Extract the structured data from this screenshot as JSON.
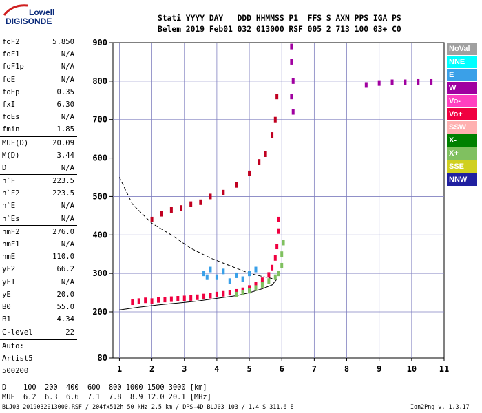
{
  "logo": {
    "line1": "Lowell",
    "line2": "DIGISONDE"
  },
  "header": {
    "line1": "Stati YYYY DAY   DDD HHMMSS P1  FFS S AXN PPS IGA PS",
    "line2": "Belem 2019 Feb01 032 013000 RSF 005 2 713 100 03+ C0"
  },
  "params": {
    "group1": [
      {
        "label": "foF2",
        "value": "5.850"
      },
      {
        "label": "foF1",
        "value": "N/A"
      },
      {
        "label": "foF1p",
        "value": "N/A"
      },
      {
        "label": "foE",
        "value": "N/A"
      },
      {
        "label": "foEp",
        "value": "0.35"
      },
      {
        "label": "fxI",
        "value": "6.30"
      },
      {
        "label": "foEs",
        "value": "N/A"
      },
      {
        "label": "fmin",
        "value": "1.85"
      }
    ],
    "group2": [
      {
        "label": "MUF(D)",
        "value": "20.09"
      },
      {
        "label": "M(D)",
        "value": "3.44"
      },
      {
        "label": "D",
        "value": "N/A"
      }
    ],
    "group3": [
      {
        "label": "h`F",
        "value": "223.5"
      },
      {
        "label": "h`F2",
        "value": "223.5"
      },
      {
        "label": "h`E",
        "value": "N/A"
      },
      {
        "label": "h`Es",
        "value": "N/A"
      }
    ],
    "group4": [
      {
        "label": "hmF2",
        "value": "276.0"
      },
      {
        "label": "hmF1",
        "value": "N/A"
      },
      {
        "label": "hmE",
        "value": "110.0"
      },
      {
        "label": "yF2",
        "value": "66.2"
      },
      {
        "label": "yF1",
        "value": "N/A"
      },
      {
        "label": "yE",
        "value": "20.0"
      },
      {
        "label": "B0",
        "value": "55.0"
      },
      {
        "label": "B1",
        "value": "4.34"
      }
    ],
    "group5": [
      {
        "label": "C-level",
        "value": "22"
      }
    ],
    "auto": {
      "line1": "Auto:",
      "line2": "Artist5",
      "line3": "500200"
    }
  },
  "legend": [
    {
      "label": "NoVal",
      "bg": "#a0a0a0",
      "fg": "#ffffff"
    },
    {
      "label": "NNE",
      "bg": "#00ffff",
      "fg": "#ffffff"
    },
    {
      "label": "E",
      "bg": "#3aa0e8",
      "fg": "#ffffff"
    },
    {
      "label": "W",
      "bg": "#a000a0",
      "fg": "#ffffff"
    },
    {
      "label": "Vo-",
      "bg": "#ff40c0",
      "fg": "#ffffff"
    },
    {
      "label": "Vo+",
      "bg": "#f00040",
      "fg": "#ffffff"
    },
    {
      "label": "SSW",
      "bg": "#ffb0b0",
      "fg": "#ffffff"
    },
    {
      "label": "X-",
      "bg": "#008000",
      "fg": "#ffffff"
    },
    {
      "label": "X+",
      "bg": "#80c060",
      "fg": "#ffffff"
    },
    {
      "label": "SSE",
      "bg": "#d0d020",
      "fg": "#ffffff"
    },
    {
      "label": "NNW",
      "bg": "#2020a0",
      "fg": "#ffffff"
    }
  ],
  "footer": {
    "d_row": "D    100  200  400  600  800 1000 1500 3000 [km]",
    "muf_row": "MUF  6.2  6.3  6.6  7.1  7.8  8.9 12.0 20.1 [MHz]",
    "file": "BLJ03_2019032013000.RSF / 204fx512h 50 kHz 2.5 km / DPS-4D BLJ03 103 / 1.4 S 311.6 E",
    "version": "Ion2Png v. 1.3.17"
  },
  "chart_data": {
    "type": "scatter",
    "title": "",
    "xlabel": "",
    "ylabel": "",
    "xlim": [
      0.8,
      11.0
    ],
    "ylim": [
      80,
      900
    ],
    "xticks": [
      1,
      2,
      3,
      4,
      5,
      6,
      7,
      8,
      9,
      10,
      11
    ],
    "yticks": [
      80,
      200,
      300,
      400,
      500,
      600,
      700,
      800,
      900
    ],
    "grid": true,
    "series": [
      {
        "color": "#f00040",
        "points": [
          [
            1.4,
            225
          ],
          [
            1.6,
            228
          ],
          [
            1.8,
            230
          ],
          [
            2.0,
            228
          ],
          [
            2.2,
            231
          ],
          [
            2.4,
            232
          ],
          [
            2.6,
            233
          ],
          [
            2.8,
            234
          ],
          [
            3.0,
            235
          ],
          [
            3.2,
            236
          ],
          [
            3.4,
            238
          ],
          [
            3.6,
            240
          ],
          [
            3.8,
            242
          ],
          [
            4.0,
            245
          ],
          [
            4.2,
            247
          ],
          [
            4.4,
            250
          ],
          [
            4.6,
            252
          ],
          [
            4.8,
            256
          ],
          [
            5.0,
            262
          ],
          [
            5.2,
            270
          ],
          [
            5.4,
            282
          ],
          [
            5.6,
            296
          ],
          [
            5.7,
            315
          ],
          [
            5.8,
            340
          ],
          [
            5.85,
            370
          ],
          [
            5.9,
            410
          ],
          [
            5.9,
            440
          ]
        ]
      },
      {
        "color": "#80c060",
        "points": [
          [
            4.6,
            245
          ],
          [
            4.8,
            250
          ],
          [
            5.0,
            255
          ],
          [
            5.2,
            262
          ],
          [
            5.4,
            270
          ],
          [
            5.6,
            280
          ],
          [
            5.8,
            290
          ],
          [
            5.9,
            300
          ],
          [
            6.0,
            320
          ],
          [
            6.0,
            350
          ],
          [
            6.05,
            380
          ]
        ]
      },
      {
        "color": "#3aa0e8",
        "points": [
          [
            3.6,
            300
          ],
          [
            3.7,
            290
          ],
          [
            3.8,
            310
          ],
          [
            4.0,
            290
          ],
          [
            4.2,
            305
          ],
          [
            4.4,
            280
          ],
          [
            4.6,
            295
          ],
          [
            4.8,
            285
          ],
          [
            5.0,
            300
          ],
          [
            5.2,
            310
          ]
        ]
      },
      {
        "color": "#c00020",
        "points": [
          [
            2.0,
            440
          ],
          [
            2.3,
            455
          ],
          [
            2.6,
            465
          ],
          [
            2.9,
            470
          ],
          [
            3.2,
            480
          ],
          [
            3.5,
            485
          ],
          [
            3.8,
            500
          ],
          [
            4.2,
            510
          ],
          [
            4.6,
            530
          ],
          [
            5.0,
            560
          ],
          [
            5.3,
            590
          ],
          [
            5.5,
            610
          ],
          [
            5.7,
            660
          ],
          [
            5.8,
            700
          ],
          [
            5.85,
            760
          ]
        ]
      },
      {
        "color": "#a000a0",
        "points": [
          [
            6.3,
            890
          ],
          [
            6.3,
            850
          ],
          [
            6.35,
            800
          ],
          [
            6.3,
            760
          ],
          [
            6.35,
            720
          ],
          [
            8.6,
            790
          ],
          [
            9.0,
            795
          ],
          [
            9.4,
            797
          ],
          [
            9.8,
            797
          ],
          [
            10.2,
            798
          ],
          [
            10.6,
            798
          ]
        ]
      }
    ],
    "lines": [
      {
        "style": "dashed",
        "x": [
          1.0,
          1.4,
          2.0,
          2.6,
          3.2,
          3.8,
          4.4,
          5.0,
          5.4,
          5.8
        ],
        "y": [
          550,
          480,
          430,
          400,
          365,
          340,
          320,
          300,
          292,
          285
        ]
      },
      {
        "style": "solid",
        "x": [
          1.0,
          1.6,
          2.2,
          2.8,
          3.4,
          4.0,
          4.6,
          5.0,
          5.4,
          5.7,
          5.85
        ],
        "y": [
          205,
          212,
          218,
          223,
          228,
          235,
          242,
          250,
          260,
          270,
          285
        ]
      }
    ]
  }
}
